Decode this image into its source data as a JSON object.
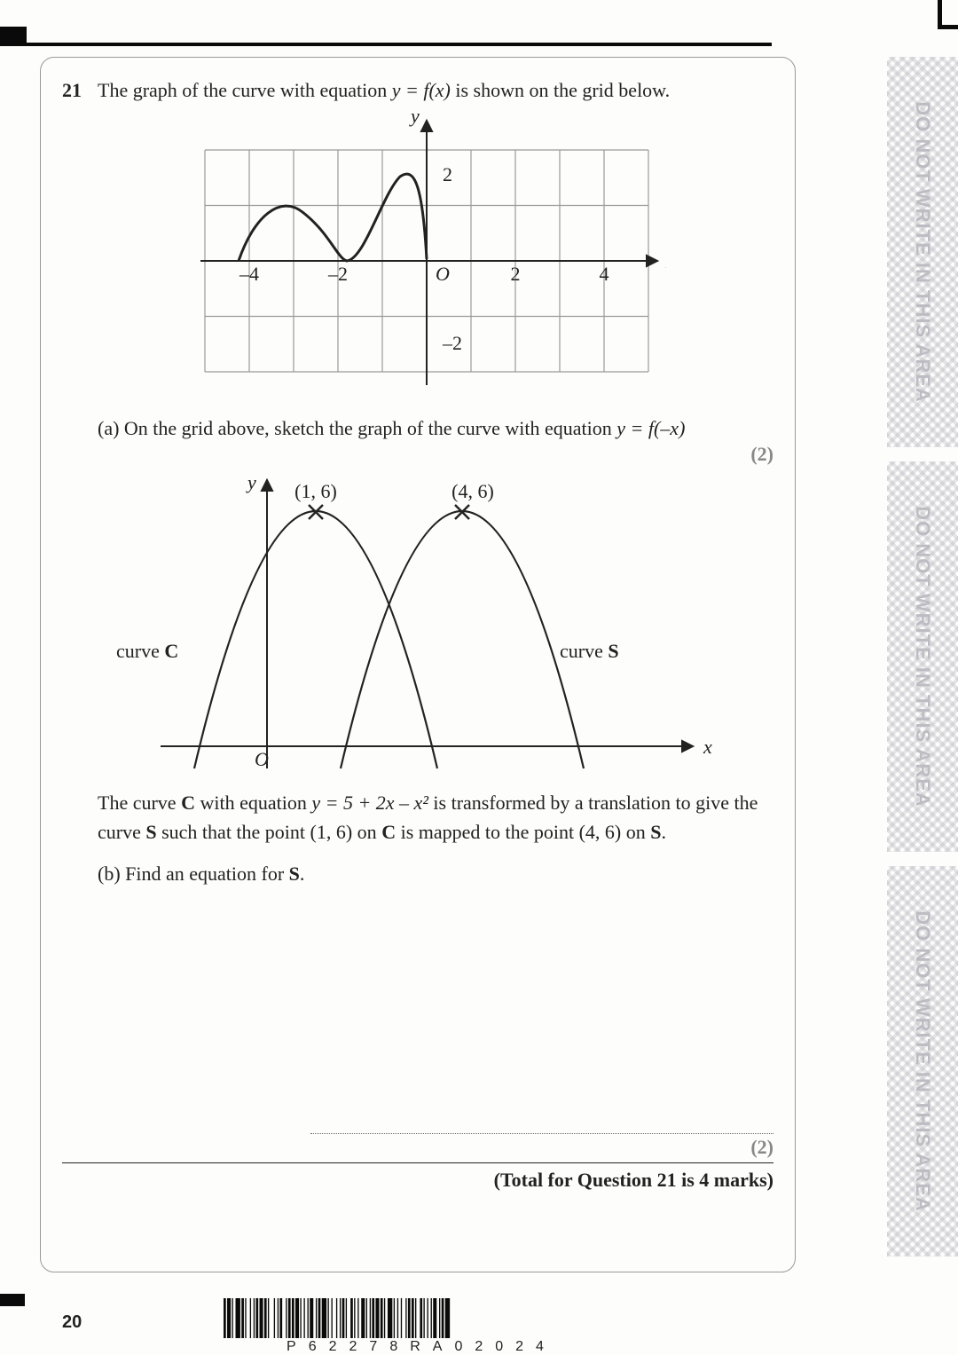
{
  "question": {
    "number": "21",
    "intro_pre": "The graph of the curve with equation  ",
    "intro_eq": "y = f(x)",
    "intro_post": "  is shown on the grid below.",
    "partA_label": "(a)  On the grid above, sketch the graph of the curve with equation  ",
    "partA_eq": "y = f(–x)",
    "partA_marks": "(2)",
    "descC_pre": "The curve ",
    "descC_b1": "C",
    "descC_mid": " with equation  ",
    "descC_eq": "y = 5 + 2x – x²",
    "descC_post1": "  is transformed by a translation to give the",
    "descC_line2_pre": "curve ",
    "descC_b2": "S",
    "descC_line2_mid": " such that the point (1, 6) on ",
    "descC_b3": "C",
    "descC_line2_mid2": " is mapped to the point (4, 6) on ",
    "descC_b4": "S",
    "descC_line2_end": ".",
    "partB_label": "(b)  Find an equation for ",
    "partB_bold": "S",
    "partB_end": ".",
    "partB_marks": "(2)",
    "total": "(Total for Question 21 is 4 marks)"
  },
  "chart1": {
    "type": "line",
    "xlim": [
      -5,
      5
    ],
    "ylim": [
      -3,
      3
    ],
    "xtick_labels_neg": [
      "–4",
      "–2"
    ],
    "xtick_labels_pos": [
      "2",
      "4"
    ],
    "ytick_pos": "2",
    "ytick_neg": "–2",
    "origin_label": "O",
    "axis_label_x": "x",
    "axis_label_y": "y",
    "grid_color": "#9a9a9a",
    "axis_color": "#222",
    "curve_color": "#222",
    "background": "#ffffff00"
  },
  "chart2": {
    "type": "line",
    "origin_label": "O",
    "axis_label_x": "x",
    "axis_label_y": "y",
    "pt1_label": "(1, 6)",
    "pt2_label": "(4, 6)",
    "curveC_label_pre": "curve ",
    "curveC_label_b": "C",
    "curveS_label_pre": "curve ",
    "curveS_label_b": "S",
    "axis_color": "#222",
    "curve_color": "#222"
  },
  "side_text": "DO NOT WRITE IN THIS AREA",
  "page_number": "20",
  "barcode_text": "P62278RA02024"
}
